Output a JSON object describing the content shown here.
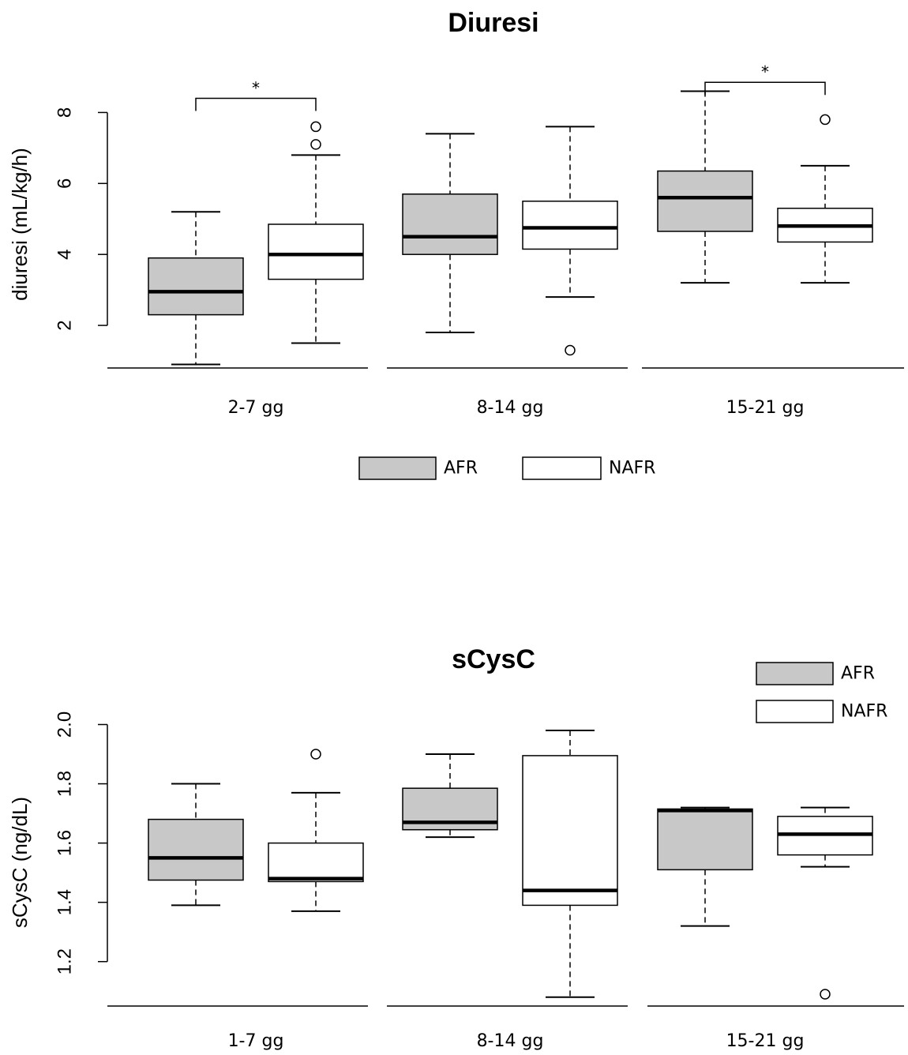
{
  "chart_data": [
    {
      "type": "box",
      "title": "Diuresi",
      "xlabel": "",
      "ylabel": "diuresi (mL/kg/h)",
      "ylim": [
        0.8,
        8.9
      ],
      "yticks": [
        2,
        4,
        6,
        8
      ],
      "categories": [
        "2-7 gg",
        "8-14 gg",
        "15-21 gg"
      ],
      "legend": {
        "placement": "bottom-center",
        "entries": [
          "AFR",
          "NAFR"
        ]
      },
      "series": [
        {
          "name": "AFR",
          "color": "#c8c8c8",
          "boxes": [
            {
              "category": "2-7 gg",
              "whisker_low": 0.9,
              "q1": 2.3,
              "median": 2.95,
              "q3": 3.9,
              "whisker_high": 5.2,
              "outliers": []
            },
            {
              "category": "8-14 gg",
              "whisker_low": 1.8,
              "q1": 4.0,
              "median": 4.5,
              "q3": 5.7,
              "whisker_high": 7.4,
              "outliers": []
            },
            {
              "category": "15-21 gg",
              "whisker_low": 3.2,
              "q1": 4.65,
              "median": 5.6,
              "q3": 6.35,
              "whisker_high": 8.6,
              "outliers": []
            }
          ]
        },
        {
          "name": "NAFR",
          "color": "#ffffff",
          "boxes": [
            {
              "category": "2-7 gg",
              "whisker_low": 1.5,
              "q1": 3.3,
              "median": 4.0,
              "q3": 4.85,
              "whisker_high": 6.8,
              "outliers": [
                7.1,
                7.6
              ]
            },
            {
              "category": "8-14 gg",
              "whisker_low": 2.8,
              "q1": 4.15,
              "median": 4.75,
              "q3": 5.5,
              "whisker_high": 7.6,
              "outliers": [
                1.3
              ]
            },
            {
              "category": "15-21 gg",
              "whisker_low": 3.2,
              "q1": 4.35,
              "median": 4.8,
              "q3": 5.3,
              "whisker_high": 6.5,
              "outliers": [
                7.8
              ]
            }
          ]
        }
      ],
      "annotations": [
        {
          "category": "2-7 gg",
          "label": "*",
          "y": 8.4
        },
        {
          "category": "15-21 gg",
          "label": "*",
          "y": 8.85
        }
      ]
    },
    {
      "type": "box",
      "title": "sCysC",
      "xlabel": "",
      "ylabel": "sCysC (ng/dL)",
      "ylim": [
        1.05,
        2.02
      ],
      "yticks": [
        1.2,
        1.4,
        1.6,
        1.8,
        2.0
      ],
      "ytick_labels": [
        "1.2",
        "1.4",
        "1.6",
        "1.8",
        "2.0"
      ],
      "categories": [
        "1-7 gg",
        "8-14 gg",
        "15-21 gg"
      ],
      "legend": {
        "placement": "top-right",
        "entries": [
          "AFR",
          "NAFR"
        ]
      },
      "series": [
        {
          "name": "AFR",
          "color": "#c8c8c8",
          "boxes": [
            {
              "category": "1-7 gg",
              "whisker_low": 1.39,
              "q1": 1.475,
              "median": 1.55,
              "q3": 1.68,
              "whisker_high": 1.8,
              "outliers": []
            },
            {
              "category": "8-14 gg",
              "whisker_low": 1.62,
              "q1": 1.645,
              "median": 1.67,
              "q3": 1.785,
              "whisker_high": 1.9,
              "outliers": []
            },
            {
              "category": "15-21 gg",
              "whisker_low": 1.32,
              "q1": 1.51,
              "median": 1.71,
              "q3": 1.715,
              "whisker_high": 1.72,
              "outliers": []
            }
          ]
        },
        {
          "name": "NAFR",
          "color": "#ffffff",
          "boxes": [
            {
              "category": "1-7 gg",
              "whisker_low": 1.37,
              "q1": 1.47,
              "median": 1.48,
              "q3": 1.6,
              "whisker_high": 1.77,
              "outliers": [
                1.9
              ]
            },
            {
              "category": "8-14 gg",
              "whisker_low": 1.08,
              "q1": 1.39,
              "median": 1.44,
              "q3": 1.895,
              "whisker_high": 1.98,
              "outliers": []
            },
            {
              "category": "15-21 gg",
              "whisker_low": 1.52,
              "q1": 1.56,
              "median": 1.63,
              "q3": 1.69,
              "whisker_high": 1.72,
              "outliers": [
                1.09
              ]
            }
          ]
        }
      ],
      "annotations": []
    }
  ]
}
